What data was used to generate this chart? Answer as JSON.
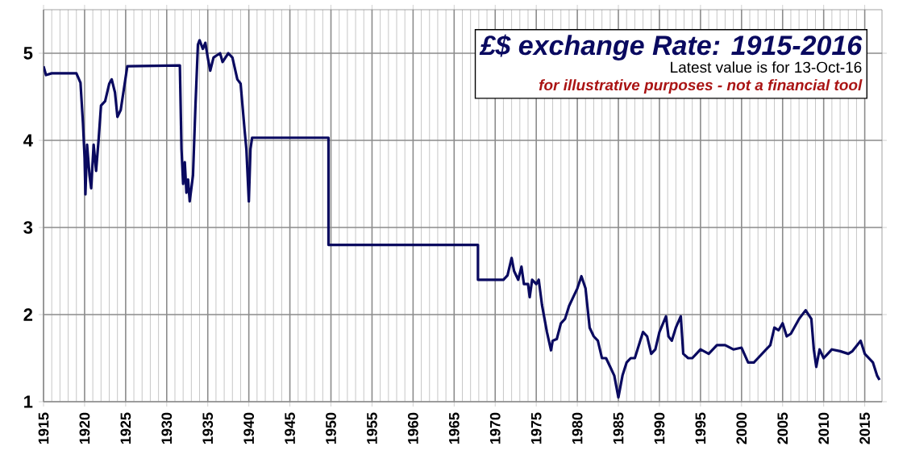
{
  "chart_data": {
    "type": "line",
    "title": "£$ exchange Rate: 1915-2016",
    "subtitle": "Latest value is for 13-Oct-16",
    "annotations": [
      "for illustrative purposes - not a financial tool"
    ],
    "xlim": [
      1915,
      2017.1
    ],
    "ylim": [
      1,
      5.5
    ],
    "xticks": [
      1915,
      1920,
      1925,
      1930,
      1935,
      1940,
      1945,
      1950,
      1955,
      1960,
      1965,
      1970,
      1975,
      1980,
      1985,
      1990,
      1995,
      2000,
      2005,
      2010,
      2015
    ],
    "yticks": [
      1,
      2,
      3,
      4,
      5
    ],
    "grid": true,
    "series": [
      {
        "color": "#0a0a60",
        "x": [
          1915.0,
          1915.3,
          1916,
          1919,
          1919.5,
          1919.8,
          1920.0,
          1920.1,
          1920.3,
          1920.6,
          1920.8,
          1921.1,
          1921.4,
          1921.7,
          1922,
          1922.5,
          1923,
          1923.3,
          1923.7,
          1924,
          1924.4,
          1924.8,
          1925.2,
          1931.5,
          1931.6,
          1931.8,
          1932,
          1932.2,
          1932.4,
          1932.6,
          1932.8,
          1933.2,
          1933.5,
          1933.8,
          1934,
          1934.4,
          1934.7,
          1935,
          1935.3,
          1935.7,
          1936,
          1936.5,
          1936.8,
          1937.5,
          1938,
          1938.6,
          1939,
          1939.5,
          1939.7,
          1940,
          1940.2,
          1940.4,
          1949.7,
          1949.7,
          1967.9,
          1967.9,
          1971,
          1971.5,
          1972,
          1972.3,
          1972.8,
          1973.2,
          1973.5,
          1974,
          1974.2,
          1974.5,
          1975,
          1975.3,
          1975.7,
          1976.3,
          1976.8,
          1977,
          1977.5,
          1978,
          1978.5,
          1979,
          1979.5,
          1980,
          1980.5,
          1981,
          1981.5,
          1982,
          1982.5,
          1983,
          1983.5,
          1984,
          1984.5,
          1985.0,
          1985.5,
          1986,
          1986.5,
          1987,
          1987.5,
          1988,
          1988.5,
          1989,
          1989.5,
          1990,
          1990.8,
          1991.1,
          1991.5,
          1992,
          1992.6,
          1992.9,
          1993.5,
          1994,
          1994.5,
          1995,
          1996,
          1997,
          1998,
          1999,
          2000,
          2000.8,
          2001.5,
          2002,
          2003,
          2003.5,
          2004,
          2004.5,
          2005,
          2005.5,
          2006,
          2007,
          2007.8,
          2008.5,
          2008.8,
          2009.1,
          2009.5,
          2010,
          2010.5,
          2011,
          2012,
          2013,
          2013.5,
          2014.5,
          2015,
          2016,
          2016.5,
          2016.8
        ],
        "values": [
          4.85,
          4.75,
          4.77,
          4.77,
          4.66,
          4.2,
          3.8,
          3.38,
          3.95,
          3.6,
          3.45,
          3.95,
          3.65,
          4.0,
          4.4,
          4.45,
          4.65,
          4.7,
          4.55,
          4.27,
          4.35,
          4.6,
          4.85,
          4.86,
          4.86,
          3.9,
          3.5,
          3.75,
          3.4,
          3.55,
          3.3,
          3.6,
          4.4,
          5.1,
          5.15,
          5.05,
          5.12,
          4.95,
          4.8,
          4.95,
          4.97,
          5.0,
          4.9,
          5.0,
          4.95,
          4.7,
          4.65,
          4.1,
          3.9,
          3.3,
          3.9,
          4.03,
          4.03,
          2.8,
          2.8,
          2.4,
          2.4,
          2.45,
          2.65,
          2.5,
          2.4,
          2.55,
          2.35,
          2.35,
          2.2,
          2.4,
          2.35,
          2.4,
          2.11,
          1.8,
          1.59,
          1.7,
          1.72,
          1.9,
          1.95,
          2.1,
          2.2,
          2.3,
          2.44,
          2.3,
          1.85,
          1.75,
          1.7,
          1.5,
          1.5,
          1.4,
          1.3,
          1.05,
          1.3,
          1.45,
          1.5,
          1.5,
          1.65,
          1.8,
          1.75,
          1.55,
          1.6,
          1.8,
          1.98,
          1.75,
          1.7,
          1.85,
          1.98,
          1.55,
          1.5,
          1.5,
          1.55,
          1.6,
          1.55,
          1.65,
          1.65,
          1.6,
          1.62,
          1.45,
          1.45,
          1.5,
          1.6,
          1.65,
          1.85,
          1.82,
          1.9,
          1.75,
          1.78,
          1.95,
          2.05,
          1.95,
          1.6,
          1.4,
          1.6,
          1.5,
          1.55,
          1.6,
          1.58,
          1.55,
          1.58,
          1.7,
          1.55,
          1.45,
          1.3,
          1.25
        ]
      }
    ]
  }
}
